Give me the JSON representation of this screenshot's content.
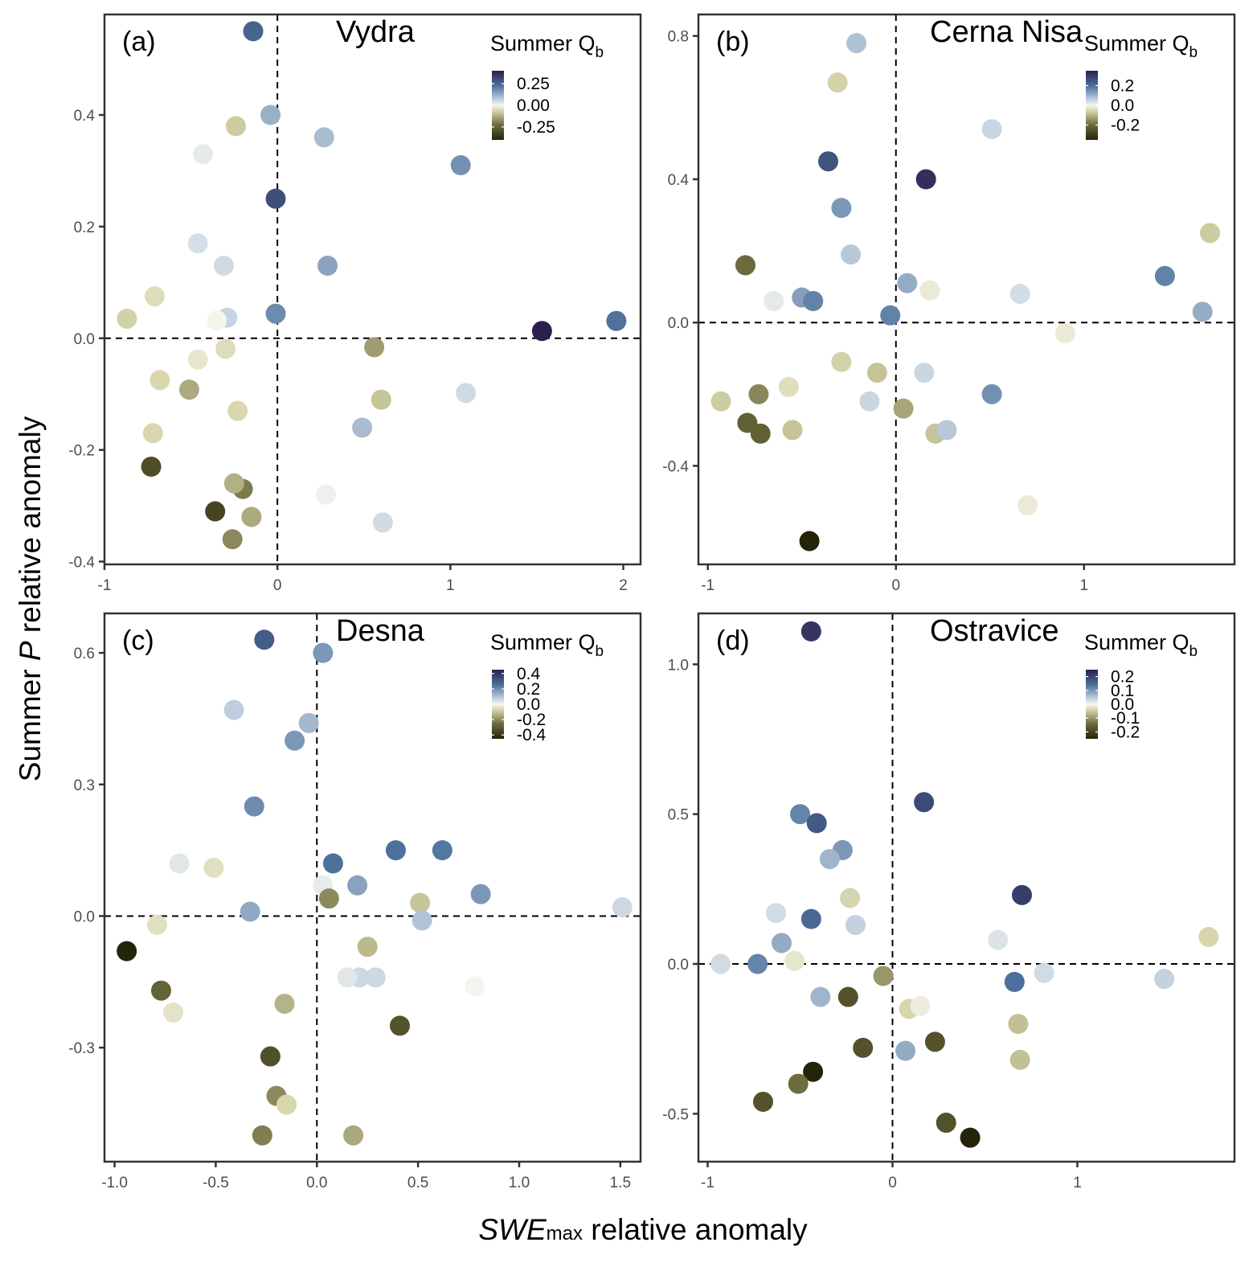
{
  "chart_data": {
    "type": "scatter",
    "xlabel": {
      "italic": "SWE",
      "subscript": "max",
      "rest": " relative anomaly"
    },
    "ylabel": {
      "pre": "Summer ",
      "italic": "P",
      "rest": " relative anomaly"
    },
    "colorbar_title": {
      "main": "Summer Q",
      "subscript": "b"
    },
    "color_scale": {
      "low": "#2a2a05",
      "mid_low": "#e6e4c4",
      "mid": "#ffffff",
      "mid_high": "#9ab0c8",
      "high": "#2c2350"
    },
    "reference_lines": {
      "x": 0,
      "y": 0,
      "style": "dashed"
    },
    "grid": false,
    "legend_placement": "top-right",
    "panels": [
      {
        "letter": "(a)",
        "title": "Vydra",
        "xlim": [
          -1,
          2.1
        ],
        "ylim": [
          -0.405,
          0.58
        ],
        "xticks": [
          -1,
          0,
          1,
          2
        ],
        "xtick_labels": [
          "-1",
          "0",
          "1",
          "2"
        ],
        "yticks": [
          -0.4,
          -0.2,
          0.0,
          0.2,
          0.4
        ],
        "ytick_labels": [
          "-0.4",
          "-0.2",
          "0.0",
          "0.2",
          "0.4"
        ],
        "colorbar": {
          "min": -0.4,
          "max": 0.4,
          "ticks": [
            0.25,
            0.0,
            -0.25
          ],
          "tick_labels": [
            "0.25",
            "0.00",
            "-0.25"
          ]
        },
        "points": [
          [
            -0.14,
            0.55,
            0.25
          ],
          [
            -0.04,
            0.4,
            0.12
          ],
          [
            -0.24,
            0.38,
            -0.08
          ],
          [
            0.27,
            0.36,
            0.1
          ],
          [
            -0.43,
            0.33,
            0.02
          ],
          [
            1.06,
            0.31,
            0.17
          ],
          [
            -0.01,
            0.25,
            0.3
          ],
          [
            -0.46,
            0.17,
            0.04
          ],
          [
            -0.31,
            0.13,
            0.05
          ],
          [
            0.29,
            0.13,
            0.14
          ],
          [
            -0.71,
            0.075,
            -0.05
          ],
          [
            -0.87,
            0.035,
            -0.07
          ],
          [
            -0.29,
            0.037,
            0.06
          ],
          [
            -0.35,
            0.032,
            0.0
          ],
          [
            -0.01,
            0.044,
            0.18
          ],
          [
            1.53,
            0.013,
            0.4
          ],
          [
            1.96,
            0.031,
            0.22
          ],
          [
            0.56,
            -0.016,
            -0.15
          ],
          [
            -0.3,
            -0.019,
            -0.05
          ],
          [
            -0.46,
            -0.038,
            -0.03
          ],
          [
            -0.68,
            -0.075,
            -0.06
          ],
          [
            -0.51,
            -0.092,
            -0.13
          ],
          [
            0.6,
            -0.11,
            -0.09
          ],
          [
            1.09,
            -0.098,
            0.05
          ],
          [
            -0.23,
            -0.13,
            -0.06
          ],
          [
            0.49,
            -0.16,
            0.1
          ],
          [
            -0.72,
            -0.17,
            -0.06
          ],
          [
            -0.73,
            -0.23,
            -0.3
          ],
          [
            -0.2,
            -0.27,
            -0.2
          ],
          [
            -0.25,
            -0.26,
            -0.12
          ],
          [
            0.28,
            -0.28,
            0.01
          ],
          [
            -0.36,
            -0.31,
            -0.32
          ],
          [
            -0.15,
            -0.32,
            -0.13
          ],
          [
            0.61,
            -0.33,
            0.05
          ],
          [
            -0.26,
            -0.36,
            -0.18
          ]
        ]
      },
      {
        "letter": "(b)",
        "title": "Cerna Nisa",
        "xlim": [
          -1.05,
          1.8
        ],
        "ylim": [
          -0.675,
          0.86
        ],
        "xticks": [
          -1,
          0,
          1
        ],
        "xtick_labels": [
          "-1",
          "0",
          "1"
        ],
        "yticks": [
          -0.4,
          0.0,
          0.4,
          0.8
        ],
        "ytick_labels": [
          "-0.4",
          "0.0",
          "0.4",
          "0.8"
        ],
        "colorbar": {
          "min": -0.35,
          "max": 0.35,
          "ticks": [
            0.2,
            0.0,
            -0.2
          ],
          "tick_labels": [
            "0.2",
            "0.0",
            "-0.2"
          ]
        },
        "points": [
          [
            -0.21,
            0.78,
            0.08
          ],
          [
            -0.31,
            0.67,
            -0.06
          ],
          [
            0.51,
            0.54,
            0.05
          ],
          [
            -0.36,
            0.45,
            0.25
          ],
          [
            0.16,
            0.4,
            0.32
          ],
          [
            -0.29,
            0.32,
            0.14
          ],
          [
            1.67,
            0.25,
            -0.07
          ],
          [
            -0.24,
            0.19,
            0.07
          ],
          [
            -0.8,
            0.16,
            -0.2
          ],
          [
            0.06,
            0.11,
            0.11
          ],
          [
            0.18,
            0.09,
            -0.02
          ],
          [
            0.66,
            0.08,
            0.04
          ],
          [
            1.43,
            0.13,
            0.17
          ],
          [
            -0.5,
            0.07,
            0.13
          ],
          [
            -0.44,
            0.06,
            0.17
          ],
          [
            -0.65,
            0.06,
            0.02
          ],
          [
            1.63,
            0.03,
            0.11
          ],
          [
            -0.03,
            0.02,
            0.17
          ],
          [
            0.9,
            -0.03,
            -0.02
          ],
          [
            -0.29,
            -0.11,
            -0.06
          ],
          [
            -0.1,
            -0.14,
            -0.08
          ],
          [
            0.15,
            -0.14,
            0.05
          ],
          [
            -0.57,
            -0.18,
            -0.04
          ],
          [
            -0.73,
            -0.2,
            -0.16
          ],
          [
            -0.93,
            -0.22,
            -0.07
          ],
          [
            0.51,
            -0.2,
            0.15
          ],
          [
            -0.14,
            -0.22,
            0.05
          ],
          [
            0.04,
            -0.24,
            -0.12
          ],
          [
            -0.79,
            -0.28,
            -0.22
          ],
          [
            -0.72,
            -0.31,
            -0.22
          ],
          [
            -0.55,
            -0.3,
            -0.08
          ],
          [
            0.21,
            -0.31,
            -0.08
          ],
          [
            0.27,
            -0.3,
            0.07
          ],
          [
            0.7,
            -0.51,
            -0.02
          ],
          [
            -0.46,
            -0.61,
            -0.35
          ]
        ]
      },
      {
        "letter": "(c)",
        "title": "Desna",
        "xlim": [
          -1.05,
          1.6
        ],
        "ylim": [
          -0.56,
          0.69
        ],
        "xticks": [
          -1.0,
          -0.5,
          0.0,
          0.5,
          1.0,
          1.5
        ],
        "xtick_labels": [
          "-1.0",
          "-0.5",
          "0.0",
          "0.5",
          "1.0",
          "1.5"
        ],
        "yticks": [
          -0.3,
          0.0,
          0.3,
          0.6
        ],
        "ytick_labels": [
          "-0.3",
          "0.0",
          "0.3",
          "0.6"
        ],
        "colorbar": {
          "min": -0.45,
          "max": 0.45,
          "ticks": [
            0.4,
            0.2,
            0.0,
            -0.2,
            -0.4
          ],
          "tick_labels": [
            "0.4",
            "0.2",
            "0.0",
            "-0.2",
            "-0.4"
          ]
        },
        "points": [
          [
            -0.26,
            0.63,
            0.3
          ],
          [
            0.03,
            0.6,
            0.18
          ],
          [
            -0.41,
            0.47,
            0.08
          ],
          [
            -0.04,
            0.44,
            0.12
          ],
          [
            -0.11,
            0.4,
            0.18
          ],
          [
            -0.31,
            0.25,
            0.2
          ],
          [
            -0.68,
            0.12,
            0.03
          ],
          [
            -0.51,
            0.11,
            -0.05
          ],
          [
            0.08,
            0.12,
            0.25
          ],
          [
            0.39,
            0.15,
            0.25
          ],
          [
            0.62,
            0.15,
            0.24
          ],
          [
            0.03,
            0.07,
            0.02
          ],
          [
            0.2,
            0.07,
            0.16
          ],
          [
            0.06,
            0.04,
            -0.2
          ],
          [
            0.51,
            0.03,
            -0.1
          ],
          [
            0.81,
            0.05,
            0.18
          ],
          [
            1.51,
            0.02,
            0.06
          ],
          [
            -0.33,
            0.01,
            0.15
          ],
          [
            0.52,
            -0.01,
            0.1
          ],
          [
            -0.79,
            -0.02,
            -0.05
          ],
          [
            -0.94,
            -0.08,
            -0.45
          ],
          [
            0.25,
            -0.07,
            -0.12
          ],
          [
            0.21,
            -0.14,
            0.06
          ],
          [
            0.15,
            -0.14,
            0.03
          ],
          [
            0.29,
            -0.14,
            0.06
          ],
          [
            0.78,
            -0.16,
            0.0
          ],
          [
            -0.77,
            -0.17,
            -0.28
          ],
          [
            -0.71,
            -0.22,
            -0.04
          ],
          [
            -0.16,
            -0.2,
            -0.13
          ],
          [
            0.41,
            -0.25,
            -0.32
          ],
          [
            -0.23,
            -0.32,
            -0.33
          ],
          [
            -0.2,
            -0.41,
            -0.2
          ],
          [
            -0.15,
            -0.43,
            -0.07
          ],
          [
            -0.27,
            -0.5,
            -0.22
          ],
          [
            0.18,
            -0.5,
            -0.15
          ]
        ]
      },
      {
        "letter": "(d)",
        "title": "Ostravice",
        "xlim": [
          -1.05,
          1.85
        ],
        "ylim": [
          -0.66,
          1.17
        ],
        "xticks": [
          -1,
          0,
          1
        ],
        "xtick_labels": [
          "-1",
          "0",
          "1"
        ],
        "yticks": [
          -0.5,
          0.0,
          0.5,
          1.0
        ],
        "ytick_labels": [
          "-0.5",
          "0.0",
          "0.5",
          "1.0"
        ],
        "colorbar": {
          "min": -0.25,
          "max": 0.25,
          "ticks": [
            0.2,
            0.1,
            0.0,
            -0.1,
            -0.2
          ],
          "tick_labels": [
            "0.2",
            "0.1",
            "0.0",
            "-0.1",
            "-0.2"
          ]
        },
        "points": [
          [
            -0.44,
            1.11,
            0.22
          ],
          [
            0.17,
            0.54,
            0.19
          ],
          [
            -0.5,
            0.5,
            0.12
          ],
          [
            -0.41,
            0.47,
            0.17
          ],
          [
            -0.27,
            0.38,
            0.1
          ],
          [
            -0.34,
            0.35,
            0.07
          ],
          [
            0.7,
            0.23,
            0.21
          ],
          [
            -0.23,
            0.22,
            -0.04
          ],
          [
            -0.63,
            0.17,
            0.03
          ],
          [
            -0.44,
            0.15,
            0.15
          ],
          [
            -0.2,
            0.13,
            0.04
          ],
          [
            -0.6,
            0.07,
            0.08
          ],
          [
            0.57,
            0.08,
            0.02
          ],
          [
            1.71,
            0.09,
            -0.04
          ],
          [
            -0.53,
            0.01,
            -0.02
          ],
          [
            -0.93,
            0.0,
            0.03
          ],
          [
            -0.73,
            0.0,
            0.12
          ],
          [
            -0.05,
            -0.04,
            -0.1
          ],
          [
            0.66,
            -0.06,
            0.14
          ],
          [
            0.82,
            -0.03,
            0.03
          ],
          [
            1.47,
            -0.05,
            0.04
          ],
          [
            -0.39,
            -0.11,
            0.07
          ],
          [
            -0.24,
            -0.11,
            -0.18
          ],
          [
            0.09,
            -0.15,
            -0.04
          ],
          [
            0.15,
            -0.14,
            -0.01
          ],
          [
            0.68,
            -0.2,
            -0.06
          ],
          [
            -0.16,
            -0.28,
            -0.18
          ],
          [
            0.07,
            -0.29,
            0.08
          ],
          [
            0.23,
            -0.26,
            -0.18
          ],
          [
            0.69,
            -0.32,
            -0.06
          ],
          [
            -0.43,
            -0.36,
            -0.25
          ],
          [
            -0.51,
            -0.4,
            -0.14
          ],
          [
            -0.7,
            -0.46,
            -0.18
          ],
          [
            0.29,
            -0.53,
            -0.18
          ],
          [
            0.42,
            -0.58,
            -0.25
          ]
        ]
      }
    ]
  }
}
